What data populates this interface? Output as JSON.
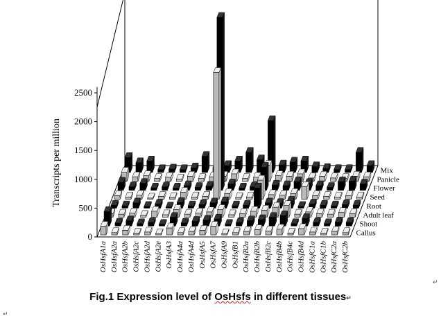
{
  "chart_data": {
    "type": "bar3d",
    "ylabel": "Transcripts per million",
    "yticks": [
      0,
      500,
      1000,
      1500,
      2000,
      2500
    ],
    "ylim": [
      0,
      3000
    ],
    "grid": false,
    "genes": [
      "OsHsfA1a",
      "OsHsfA2a",
      "OsHsfA2b",
      "OsHsfA2c",
      "OsHsfA2d",
      "OsHsfA2e",
      "OsHsfA3",
      "OsHsfA4a",
      "OsHsfA4d",
      "OsHsfA5",
      "OsHsfA7",
      "OsHsfA9",
      "OsHsfB1",
      "OsHsfB2a",
      "OsHsfB2b",
      "OsHsfB2c",
      "OsHsfB4b",
      "OsHsfB4c",
      "OsHsfB4d",
      "OsHsfC1a",
      "OsHsfC1b",
      "OsHsfC2a",
      "OsHsfC2b"
    ],
    "series": [
      {
        "name": "Callus",
        "values": [
          150,
          40,
          80,
          30,
          50,
          20,
          120,
          40,
          60,
          80,
          150,
          20,
          40,
          60,
          90,
          70,
          100,
          30,
          110,
          50,
          30,
          60,
          40
        ]
      },
      {
        "name": "Shoot",
        "values": [
          250,
          50,
          90,
          40,
          60,
          30,
          150,
          50,
          80,
          100,
          120,
          30,
          60,
          90,
          110,
          150,
          180,
          40,
          130,
          60,
          40,
          70,
          60
        ]
      },
      {
        "name": "Adult leaf",
        "values": [
          60,
          50,
          70,
          30,
          100,
          40,
          130,
          50,
          70,
          90,
          130,
          40,
          60,
          100,
          120,
          170,
          200,
          50,
          90,
          60,
          50,
          80,
          60
        ]
      },
      {
        "name": "Root",
        "values": [
          50,
          40,
          90,
          30,
          70,
          20,
          100,
          40,
          60,
          90,
          110,
          40,
          50,
          350,
          90,
          80,
          120,
          30,
          70,
          50,
          40,
          60,
          50
        ]
      },
      {
        "name": "Seed",
        "values": [
          60,
          40,
          70,
          20,
          50,
          30,
          120,
          40,
          50,
          2200,
          100,
          30,
          40,
          330,
          80,
          70,
          100,
          220,
          60,
          50,
          40,
          60,
          40
        ]
      },
      {
        "name": "Flower",
        "values": [
          140,
          60,
          120,
          40,
          60,
          40,
          80,
          50,
          70,
          3000,
          110,
          40,
          60,
          400,
          90,
          80,
          150,
          120,
          80,
          50,
          150,
          160,
          110
        ]
      },
      {
        "name": "Panicle",
        "values": [
          160,
          80,
          100,
          50,
          70,
          40,
          90,
          50,
          80,
          90,
          130,
          50,
          70,
          280,
          100,
          90,
          130,
          60,
          90,
          60,
          50,
          90,
          80
        ]
      },
      {
        "name": "Mix",
        "values": [
          260,
          170,
          200,
          50,
          60,
          50,
          80,
          280,
          90,
          120,
          200,
          350,
          220,
          900,
          130,
          180,
          200,
          100,
          70,
          50,
          50,
          350,
          120
        ]
      }
    ]
  },
  "caption": {
    "lead": "Fig.1 Expression level of ",
    "highlight": "OsHsfs",
    "tail": " in different tissues"
  },
  "marks": {
    "paragraph_mark_right": "↵",
    "paragraph_mark_caption": "↵",
    "paragraph_mark_left": "↵"
  }
}
